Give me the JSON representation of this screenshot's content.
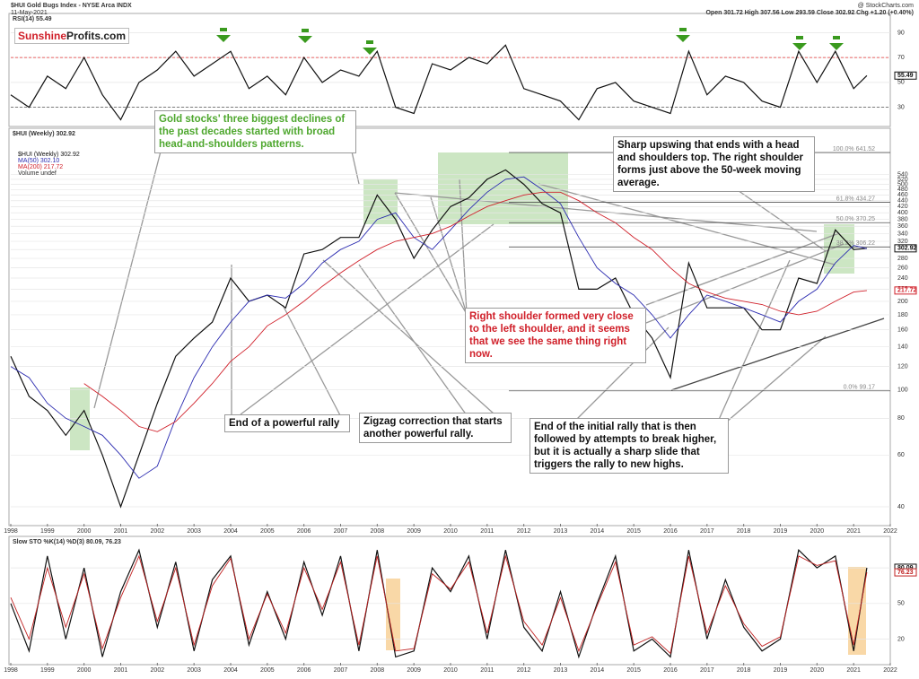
{
  "header": {
    "title": "$HUI Gold Bugs Index - NYSE Arca INDX",
    "date": "11-May-2021",
    "source": "@ StockCharts.com",
    "ohlc": "Open 301.72 High 307.56 Low 293.59 Close 302.92 Chg +1.20 (+0.40%)"
  },
  "logo": [
    "Sunshine",
    "Profits.com"
  ],
  "annotations": [
    "Gold stocks' three biggest declines of the past decades started with broad head-and-shoulders patterns.",
    "Sharp upswing that ends with a head and shoulders top. The right shoulder forms just above the 50-week moving average.",
    "Right shoulder formed very close to the left shoulder, and it seems that we see the same thing right now.",
    "End of a powerful rally",
    "Zigzag correction that starts another powerful rally.",
    "End of the initial rally that is then followed by attempts to break higher, but it is actually a sharp slide that triggers the rally to new highs."
  ],
  "chart_data": [
    {
      "type": "line",
      "title": "RSI(14) 55.49",
      "x": [
        1998,
        1998.5,
        1999,
        1999.5,
        2000,
        2000.5,
        2001,
        2001.5,
        2002,
        2002.5,
        2003,
        2003.5,
        2004,
        2004.5,
        2005,
        2005.5,
        2006,
        2006.5,
        2007,
        2007.5,
        2008,
        2008.5,
        2009,
        2009.5,
        2010,
        2010.5,
        2011,
        2011.5,
        2012,
        2012.5,
        2013,
        2013.5,
        2014,
        2014.5,
        2015,
        2015.5,
        2016,
        2016.5,
        2017,
        2017.5,
        2018,
        2018.5,
        2019,
        2019.5,
        2020,
        2020.5,
        2021,
        2021.36
      ],
      "series": [
        {
          "name": "RSI(14)",
          "color": "#111",
          "values": [
            40,
            30,
            55,
            45,
            70,
            40,
            20,
            50,
            60,
            75,
            55,
            65,
            75,
            45,
            55,
            40,
            70,
            50,
            60,
            55,
            75,
            30,
            25,
            65,
            60,
            70,
            65,
            80,
            45,
            40,
            35,
            20,
            45,
            50,
            35,
            30,
            25,
            75,
            40,
            55,
            50,
            35,
            30,
            75,
            50,
            75,
            45,
            55.49
          ]
        }
      ],
      "last_value": 55.49,
      "xlim": [
        1998,
        2022
      ],
      "ylim": [
        16,
        104
      ],
      "yticks": [
        30,
        50,
        70,
        90
      ],
      "levels": [
        {
          "value": 70,
          "color": "#e03030"
        },
        {
          "value": 30,
          "color": "#555"
        }
      ]
    },
    {
      "type": "line",
      "title": "$HUI (Weekly) 302.92",
      "log_scale": true,
      "x": [
        1998,
        1998.5,
        1999,
        1999.5,
        2000,
        2000.5,
        2001,
        2001.5,
        2002,
        2002.5,
        2003,
        2003.5,
        2004,
        2004.5,
        2005,
        2005.5,
        2006,
        2006.5,
        2007,
        2007.5,
        2008,
        2008.5,
        2009,
        2009.5,
        2010,
        2010.5,
        2011,
        2011.5,
        2012,
        2012.5,
        2013,
        2013.5,
        2014,
        2014.5,
        2015,
        2015.5,
        2016,
        2016.5,
        2017,
        2017.5,
        2018,
        2018.5,
        2019,
        2019.5,
        2020,
        2020.5,
        2021,
        2021.36
      ],
      "series": [
        {
          "name": "$HUI (Weekly) 302.92",
          "color": "#111",
          "values": [
            130,
            95,
            85,
            70,
            85,
            60,
            40,
            60,
            90,
            130,
            150,
            170,
            240,
            200,
            210,
            190,
            290,
            300,
            330,
            330,
            460,
            380,
            280,
            350,
            420,
            450,
            520,
            560,
            500,
            430,
            400,
            220,
            220,
            240,
            180,
            150,
            110,
            270,
            190,
            190,
            190,
            160,
            160,
            240,
            230,
            350,
            300,
            302.92
          ]
        },
        {
          "name": "MA(50) 302.10",
          "color": "#2b2bb0",
          "values": [
            120,
            110,
            90,
            80,
            75,
            70,
            60,
            50,
            55,
            80,
            110,
            140,
            170,
            200,
            210,
            205,
            230,
            270,
            300,
            320,
            380,
            400,
            330,
            300,
            350,
            410,
            470,
            520,
            530,
            480,
            430,
            330,
            260,
            230,
            210,
            180,
            150,
            180,
            210,
            200,
            190,
            180,
            170,
            200,
            220,
            270,
            310,
            302.1
          ]
        },
        {
          "name": "MA(200) 217.72",
          "color": "#d0202a",
          "values": [
            null,
            null,
            null,
            null,
            105,
            95,
            85,
            75,
            72,
            78,
            90,
            105,
            125,
            140,
            165,
            180,
            200,
            225,
            250,
            275,
            300,
            320,
            330,
            340,
            360,
            390,
            420,
            440,
            460,
            470,
            470,
            440,
            400,
            370,
            330,
            300,
            260,
            230,
            215,
            205,
            200,
            195,
            185,
            180,
            185,
            200,
            215,
            217.72
          ]
        }
      ],
      "legend_extra": "Volume undef",
      "tags": [
        302.92,
        217.72
      ],
      "xlim": [
        1998,
        2022
      ],
      "ylim": [
        35,
        765
      ],
      "xticks": [
        1998,
        1999,
        2000,
        2001,
        2002,
        2003,
        2004,
        2005,
        2006,
        2007,
        2008,
        2009,
        2010,
        2011,
        2012,
        2013,
        2014,
        2015,
        2016,
        2017,
        2018,
        2019,
        2020,
        2021,
        2022
      ],
      "yticks": [
        40,
        60,
        80,
        100,
        120,
        140,
        160,
        180,
        200,
        220,
        240,
        260,
        280,
        300,
        320,
        340,
        360,
        380,
        400,
        420,
        440,
        460,
        480,
        500,
        520,
        540
      ],
      "levels": [
        {
          "value": 641.52,
          "label": "100.0% 641.52"
        },
        {
          "value": 434.27,
          "label": "61.8% 434.27"
        },
        {
          "value": 370.25,
          "label": "50.0% 370.25"
        },
        {
          "value": 306.22,
          "label": "38.2% 306.22"
        },
        {
          "value": 99.17,
          "label": "0.0% 99.17"
        }
      ]
    },
    {
      "type": "line",
      "title": "Slow STO %K(14) %D(3) 80.09, 76.23",
      "x": [
        1998,
        1998.5,
        1999,
        1999.5,
        2000,
        2000.5,
        2001,
        2001.5,
        2002,
        2002.5,
        2003,
        2003.5,
        2004,
        2004.5,
        2005,
        2005.5,
        2006,
        2006.5,
        2007,
        2007.5,
        2008,
        2008.5,
        2009,
        2009.5,
        2010,
        2010.5,
        2011,
        2011.5,
        2012,
        2012.5,
        2013,
        2013.5,
        2014,
        2014.5,
        2015,
        2015.5,
        2016,
        2016.5,
        2017,
        2017.5,
        2018,
        2018.5,
        2019,
        2019.5,
        2020,
        2020.5,
        2021,
        2021.36
      ],
      "series": [
        {
          "name": "%K(14)",
          "color": "#111",
          "values": [
            50,
            10,
            90,
            20,
            80,
            5,
            60,
            95,
            30,
            85,
            10,
            70,
            90,
            15,
            60,
            20,
            85,
            40,
            90,
            10,
            95,
            5,
            10,
            80,
            60,
            90,
            20,
            95,
            30,
            10,
            60,
            5,
            50,
            90,
            10,
            20,
            5,
            95,
            20,
            70,
            30,
            10,
            20,
            95,
            80,
            90,
            10,
            80.09
          ]
        },
        {
          "name": "%D(3)",
          "color": "#c02020",
          "values": [
            55,
            20,
            80,
            30,
            75,
            12,
            55,
            90,
            35,
            80,
            15,
            65,
            88,
            20,
            58,
            25,
            80,
            45,
            85,
            15,
            90,
            10,
            12,
            75,
            62,
            85,
            25,
            90,
            35,
            15,
            55,
            10,
            48,
            85,
            15,
            22,
            8,
            90,
            25,
            65,
            33,
            14,
            22,
            90,
            82,
            86,
            15,
            76.23
          ]
        }
      ],
      "last_values": [
        80.09,
        76.23
      ],
      "xlim": [
        1998,
        2022
      ],
      "ylim": [
        0,
        105
      ],
      "yticks": [
        20,
        50,
        80
      ],
      "xticks": [
        1998,
        1999,
        2000,
        2001,
        2002,
        2003,
        2004,
        2005,
        2006,
        2007,
        2008,
        2009,
        2010,
        2011,
        2012,
        2013,
        2014,
        2015,
        2016,
        2017,
        2018,
        2019,
        2020,
        2021,
        2022
      ]
    }
  ]
}
